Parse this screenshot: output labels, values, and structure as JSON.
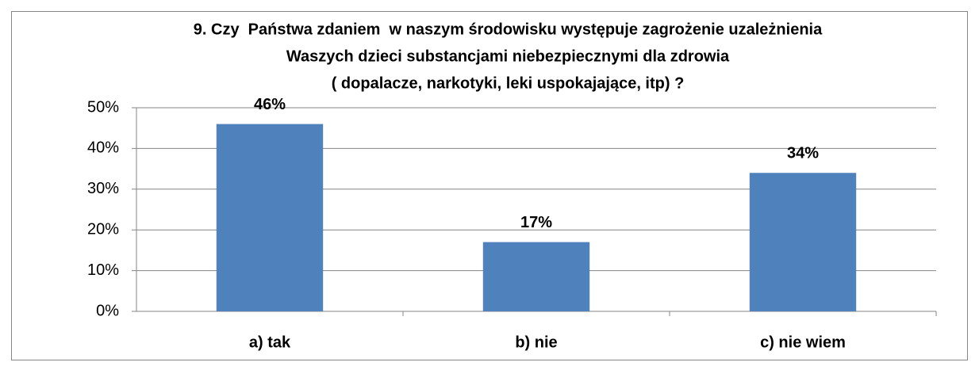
{
  "chart_data": {
    "type": "bar",
    "title": [
      "9. Czy  Państwa zdaniem  w naszym środowisku występuje zagrożenie uzależnienia",
      "Waszych dzieci substancjami niebezpiecznymi dla zdrowia",
      "( dopalacze, narkotyki, leki uspokajające, itp) ?"
    ],
    "categories": [
      "a) tak",
      "b) nie",
      "c) nie wiem"
    ],
    "values": [
      46,
      17,
      34
    ],
    "value_labels": [
      "46%",
      "17%",
      "34%"
    ],
    "color": "#4f81bd",
    "ylim": [
      0,
      50
    ],
    "yticks": [
      {
        "value": 0,
        "label": "0%"
      },
      {
        "value": 10,
        "label": "10%"
      },
      {
        "value": 20,
        "label": "20%"
      },
      {
        "value": 30,
        "label": "30%"
      },
      {
        "value": 40,
        "label": "40%"
      },
      {
        "value": 50,
        "label": "50%"
      }
    ],
    "grid": true
  }
}
